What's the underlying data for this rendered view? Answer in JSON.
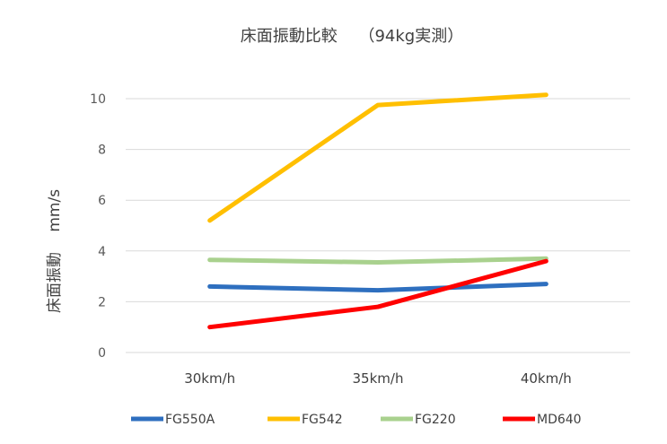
{
  "chart_data": {
    "type": "line",
    "title": "床面振動比較　 （94kg実測）",
    "xlabel": "",
    "ylabel": "床面振動　 mm/s",
    "categories": [
      "30km/h",
      "35km/h",
      "40km/h"
    ],
    "ylim": [
      0,
      10
    ],
    "yticks": [
      0,
      2,
      4,
      6,
      8,
      10
    ],
    "grid": true,
    "legend_position": "bottom",
    "series": [
      {
        "name": "FG550A",
        "values": [
          2.6,
          2.45,
          2.7
        ],
        "color": "#2e6fbf"
      },
      {
        "name": "FG542",
        "values": [
          5.2,
          9.75,
          10.15
        ],
        "color": "#ffbf00"
      },
      {
        "name": "FG220",
        "values": [
          3.65,
          3.55,
          3.7
        ],
        "color": "#a9d18e"
      },
      {
        "name": "MD640",
        "values": [
          1.0,
          1.8,
          3.6
        ],
        "color": "#ff0000"
      }
    ]
  }
}
